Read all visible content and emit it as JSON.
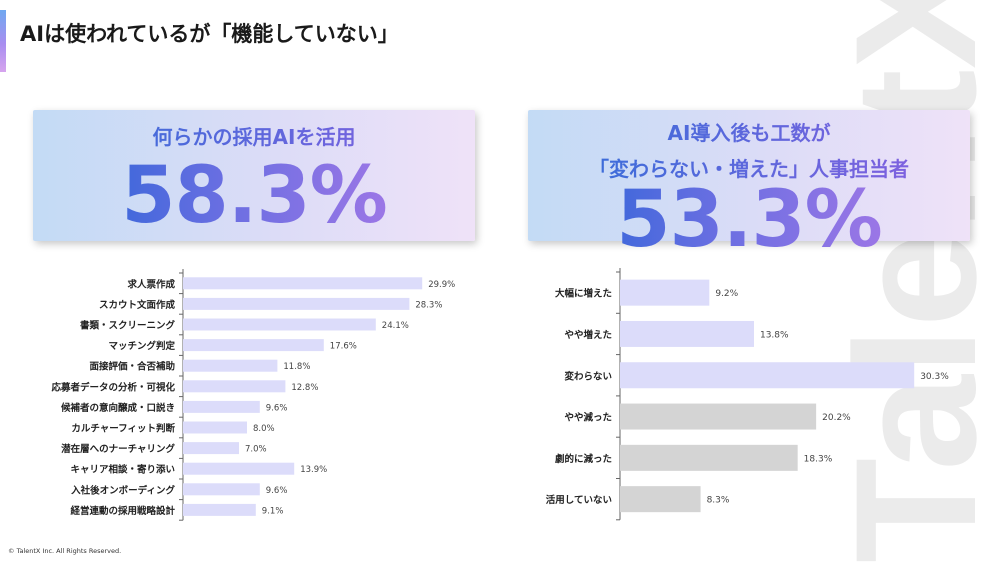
{
  "slide": {
    "title": "AIは使われているが「機能していない」",
    "copyright": "© TalentX Inc. All Rights Reserved.",
    "watermark": "TalentX"
  },
  "kpi_left": {
    "label": "何らかの採用AIを活用",
    "value": "58.3%"
  },
  "kpi_right": {
    "label_line1": "AI導入後も工数が",
    "label_line2": "「変わらない・増えた」人事担当者",
    "value": "53.3%"
  },
  "colors": {
    "bar_purple": "#dcdcfa",
    "bar_gray": "#d4d4d4",
    "axis": "#666666"
  },
  "chart_data": [
    {
      "type": "bar",
      "orientation": "horizontal",
      "categories": [
        "求人票作成",
        "スカウト文面作成",
        "書類・スクリーニング",
        "マッチング判定",
        "面接評価・合否補助",
        "応募者データの分析・可視化",
        "候補者の意向醸成・口説き",
        "カルチャーフィット判断",
        "潜在層へのナーチャリング",
        "キャリア相談・寄り添い",
        "入社後オンボーディング",
        "経営連動の採用戦略設計"
      ],
      "values": [
        29.9,
        28.3,
        24.1,
        17.6,
        11.8,
        12.8,
        9.6,
        8.0,
        7.0,
        13.9,
        9.6,
        9.1
      ],
      "value_labels": [
        "29.9%",
        "28.3%",
        "24.1%",
        "17.6%",
        "11.8%",
        "12.8%",
        "9.6%",
        "8.0%",
        "7.0%",
        "13.9%",
        "9.6%",
        "9.1%"
      ],
      "xlim": [
        0,
        40
      ]
    },
    {
      "type": "bar",
      "orientation": "horizontal",
      "categories": [
        "大幅に増えた",
        "やや増えた",
        "変わらない",
        "やや減った",
        "劇的に減った",
        "活用していない"
      ],
      "values": [
        9.2,
        13.8,
        30.3,
        20.2,
        18.3,
        8.3
      ],
      "value_labels": [
        "9.2%",
        "13.8%",
        "30.3%",
        "20.2%",
        "18.3%",
        "8.3%"
      ],
      "bar_colors": [
        "#dcdcfa",
        "#dcdcfa",
        "#dcdcfa",
        "#d4d4d4",
        "#d4d4d4",
        "#d4d4d4"
      ],
      "xlim": [
        0,
        31
      ]
    }
  ]
}
